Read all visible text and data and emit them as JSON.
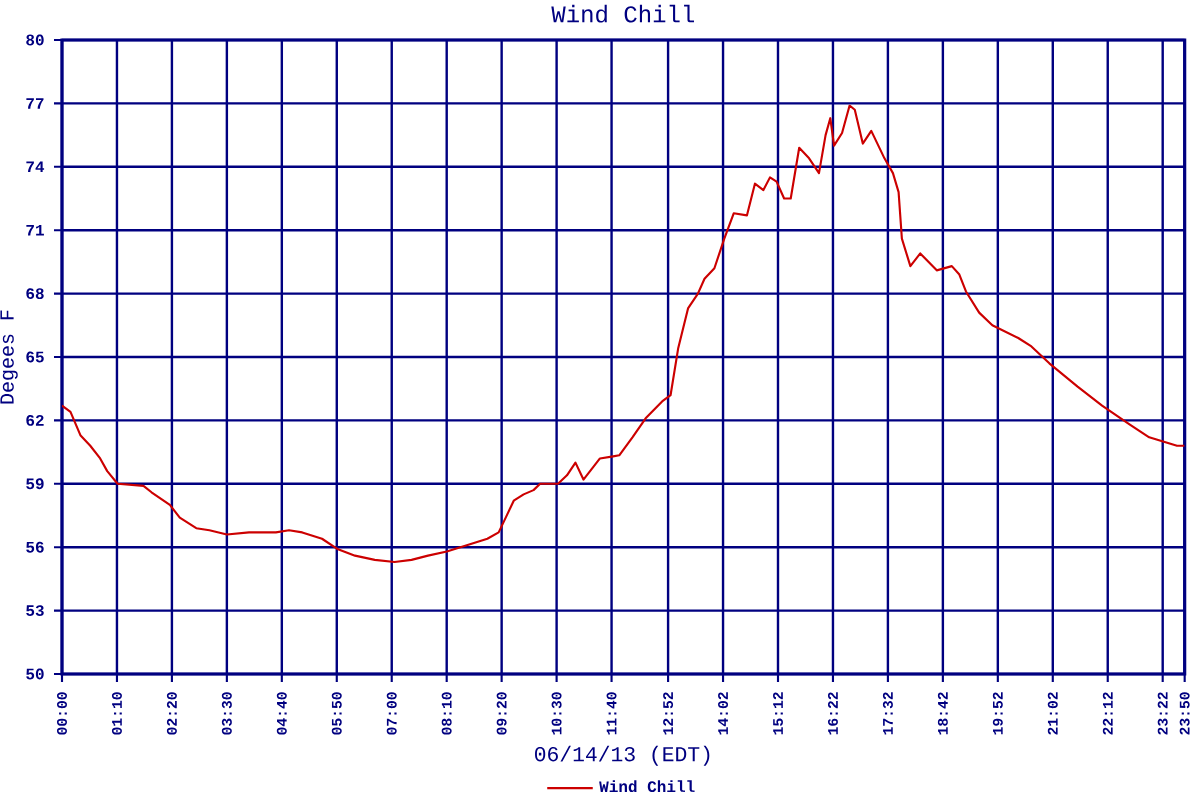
{
  "chart_data": {
    "type": "line",
    "title": "Wind Chill",
    "xlabel": "06/14/13 (EDT)",
    "ylabel": "Degees F",
    "xlim": [
      0,
      23.8333
    ],
    "ylim": [
      50,
      80
    ],
    "xticks": [
      {
        "value": 0,
        "label": "00:00"
      },
      {
        "value": 1.1667,
        "label": "01:10"
      },
      {
        "value": 2.3333,
        "label": "02:20"
      },
      {
        "value": 3.5,
        "label": "03:30"
      },
      {
        "value": 4.6667,
        "label": "04:40"
      },
      {
        "value": 5.8333,
        "label": "05:50"
      },
      {
        "value": 7,
        "label": "07:00"
      },
      {
        "value": 8.1667,
        "label": "08:10"
      },
      {
        "value": 9.3333,
        "label": "09:20"
      },
      {
        "value": 10.5,
        "label": "10:30"
      },
      {
        "value": 11.6667,
        "label": "11:40"
      },
      {
        "value": 12.8667,
        "label": "12:52"
      },
      {
        "value": 14.0333,
        "label": "14:02"
      },
      {
        "value": 15.2,
        "label": "15:12"
      },
      {
        "value": 16.3667,
        "label": "16:22"
      },
      {
        "value": 17.5333,
        "label": "17:32"
      },
      {
        "value": 18.7,
        "label": "18:42"
      },
      {
        "value": 19.8667,
        "label": "19:52"
      },
      {
        "value": 21.0333,
        "label": "21:02"
      },
      {
        "value": 22.2,
        "label": "22:12"
      },
      {
        "value": 23.3667,
        "label": "23:22"
      },
      {
        "value": 23.8333,
        "label": "23:50"
      }
    ],
    "yticks": [
      50,
      53,
      56,
      59,
      62,
      65,
      68,
      71,
      74,
      77,
      80
    ],
    "grid": true,
    "legend": "bottom",
    "series": [
      {
        "name": "Wind Chill",
        "color": "#cc0000",
        "x": [
          0,
          0.18,
          0.39,
          0.6,
          0.81,
          0.96,
          1.18,
          1.73,
          1.9,
          2.29,
          2.5,
          2.85,
          3.13,
          3.5,
          3.97,
          4.54,
          4.82,
          5.1,
          5.52,
          5.86,
          6.22,
          6.64,
          7.06,
          7.42,
          7.77,
          8.17,
          8.61,
          9.03,
          9.27,
          9.42,
          9.59,
          9.8,
          10.01,
          10.15,
          10.53,
          10.72,
          10.9,
          11.07,
          11.28,
          11.42,
          11.7,
          11.83,
          12.11,
          12.39,
          12.74,
          12.92,
          13.08,
          13.29,
          13.5,
          13.64,
          13.85,
          14.06,
          14.26,
          14.54,
          14.71,
          14.89,
          15.03,
          15.17,
          15.33,
          15.47,
          15.65,
          15.86,
          16.07,
          16.21,
          16.31,
          16.39,
          16.56,
          16.72,
          16.83,
          17.0,
          17.18,
          17.46,
          17.64,
          17.76,
          17.83,
          18.01,
          18.22,
          18.57,
          18.89,
          19.05,
          19.19,
          19.47,
          19.75,
          20.3,
          20.58,
          20.96,
          21.56,
          22.08,
          22.67,
          23.08,
          23.67,
          23.83
        ],
        "values": [
          62.7,
          62.4,
          61.3,
          60.8,
          60.2,
          59.6,
          59.0,
          58.9,
          58.6,
          58.0,
          57.4,
          56.9,
          56.8,
          56.6,
          56.7,
          56.7,
          56.8,
          56.7,
          56.4,
          55.9,
          55.6,
          55.4,
          55.3,
          55.4,
          55.6,
          55.8,
          56.1,
          56.4,
          56.7,
          57.4,
          58.2,
          58.5,
          58.7,
          59.0,
          59.0,
          59.4,
          60.0,
          59.2,
          59.8,
          60.2,
          60.3,
          60.35,
          61.2,
          62.1,
          62.9,
          63.2,
          65.4,
          67.3,
          68.0,
          68.7,
          69.2,
          70.6,
          71.8,
          71.7,
          73.2,
          72.9,
          73.5,
          73.3,
          72.5,
          72.5,
          74.9,
          74.4,
          73.7,
          75.5,
          76.3,
          75.0,
          75.6,
          76.9,
          76.7,
          75.1,
          75.7,
          74.4,
          73.7,
          72.8,
          70.6,
          69.3,
          69.9,
          69.1,
          69.3,
          68.9,
          68.1,
          67.1,
          66.5,
          65.9,
          65.5,
          64.7,
          63.6,
          62.7,
          61.8,
          61.2,
          60.8,
          60.8
        ]
      }
    ]
  }
}
